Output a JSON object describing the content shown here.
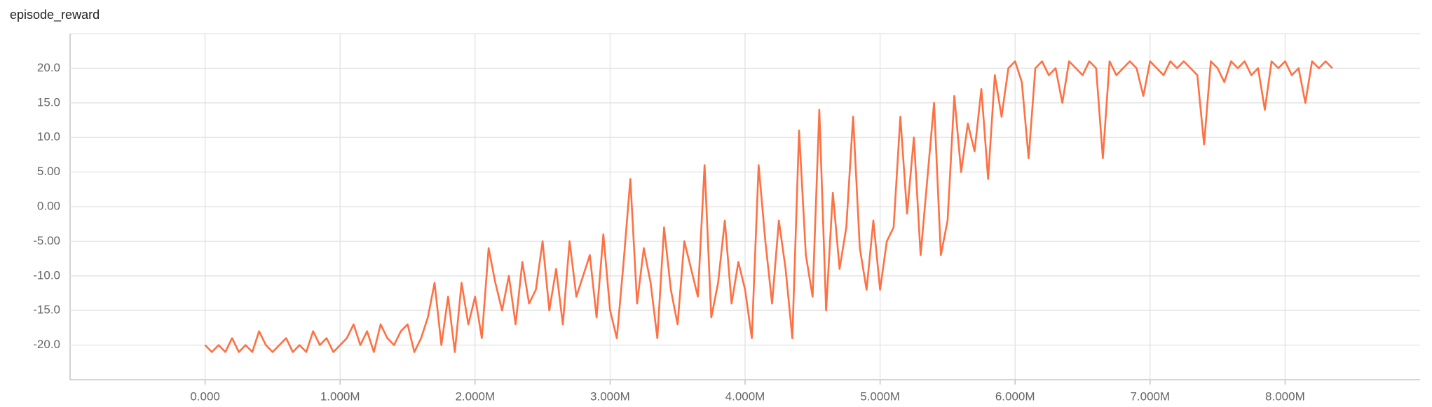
{
  "chart_data": {
    "type": "line",
    "title": "episode_reward",
    "x": [
      0,
      50000,
      100000,
      150000,
      200000,
      250000,
      300000,
      350000,
      400000,
      450000,
      500000,
      550000,
      600000,
      650000,
      700000,
      750000,
      800000,
      850000,
      900000,
      950000,
      1000000,
      1050000,
      1100000,
      1150000,
      1200000,
      1250000,
      1300000,
      1350000,
      1400000,
      1450000,
      1500000,
      1550000,
      1600000,
      1650000,
      1700000,
      1750000,
      1800000,
      1850000,
      1900000,
      1950000,
      2000000,
      2050000,
      2100000,
      2150000,
      2200000,
      2250000,
      2300000,
      2350000,
      2400000,
      2450000,
      2500000,
      2550000,
      2600000,
      2650000,
      2700000,
      2750000,
      2800000,
      2850000,
      2900000,
      2950000,
      3000000,
      3050000,
      3100000,
      3150000,
      3200000,
      3250000,
      3300000,
      3350000,
      3400000,
      3450000,
      3500000,
      3550000,
      3600000,
      3650000,
      3700000,
      3750000,
      3800000,
      3850000,
      3900000,
      3950000,
      4000000,
      4050000,
      4100000,
      4150000,
      4200000,
      4250000,
      4300000,
      4350000,
      4400000,
      4450000,
      4500000,
      4550000,
      4600000,
      4650000,
      4700000,
      4750000,
      4800000,
      4850000,
      4900000,
      4950000,
      5000000,
      5050000,
      5100000,
      5150000,
      5200000,
      5250000,
      5300000,
      5350000,
      5400000,
      5450000,
      5500000,
      5550000,
      5600000,
      5650000,
      5700000,
      5750000,
      5800000,
      5850000,
      5900000,
      5950000,
      6000000,
      6050000,
      6100000,
      6150000,
      6200000,
      6250000,
      6300000,
      6350000,
      6400000,
      6450000,
      6500000,
      6550000,
      6600000,
      6650000,
      6700000,
      6750000,
      6800000,
      6850000,
      6900000,
      6950000,
      7000000,
      7050000,
      7100000,
      7150000,
      7200000,
      7250000,
      7300000,
      7350000,
      7400000,
      7450000,
      7500000,
      7550000,
      7600000,
      7650000,
      7700000,
      7750000,
      7800000,
      7850000,
      7900000,
      7950000,
      8000000,
      8050000,
      8100000,
      8150000,
      8200000,
      8250000,
      8300000,
      8350000
    ],
    "series": [
      {
        "name": "episode_reward",
        "color": "#ff7043",
        "values": [
          -20,
          -21,
          -20,
          -21,
          -19,
          -21,
          -20,
          -21,
          -18,
          -20,
          -21,
          -20,
          -19,
          -21,
          -20,
          -21,
          -18,
          -20,
          -19,
          -21,
          -20,
          -19,
          -17,
          -20,
          -18,
          -21,
          -17,
          -19,
          -20,
          -18,
          -17,
          -21,
          -19,
          -16,
          -11,
          -20,
          -13,
          -21,
          -11,
          -17,
          -13,
          -19,
          -6,
          -11,
          -15,
          -10,
          -17,
          -8,
          -14,
          -12,
          -5,
          -15,
          -9,
          -17,
          -5,
          -13,
          -10,
          -7,
          -16,
          -4,
          -15,
          -19,
          -8,
          4,
          -14,
          -6,
          -11,
          -19,
          -3,
          -12,
          -17,
          -5,
          -9,
          -13,
          6,
          -16,
          -11,
          -2,
          -14,
          -8,
          -12,
          -19,
          6,
          -5,
          -14,
          -2,
          -9,
          -19,
          11,
          -7,
          -13,
          14,
          -15,
          2,
          -9,
          -3,
          13,
          -6,
          -12,
          -2,
          -12,
          -5,
          -3,
          13,
          -1,
          10,
          -7,
          4,
          15,
          -7,
          -2,
          16,
          5,
          12,
          8,
          17,
          4,
          19,
          13,
          20,
          21,
          18,
          7,
          20,
          21,
          19,
          20,
          15,
          21,
          20,
          19,
          21,
          20,
          7,
          21,
          19,
          20,
          21,
          20,
          16,
          21,
          20,
          19,
          21,
          20,
          21,
          20,
          19,
          9,
          21,
          20,
          18,
          21,
          20,
          21,
          19,
          20,
          14,
          21,
          20,
          21,
          19,
          20,
          15,
          21,
          20,
          21,
          20
        ]
      }
    ],
    "xlim": [
      -1000000,
      9000000
    ],
    "ylim": [
      -25,
      25
    ],
    "xticks": [
      {
        "value": 0,
        "label": "0.000"
      },
      {
        "value": 1000000,
        "label": "1.000M"
      },
      {
        "value": 2000000,
        "label": "2.000M"
      },
      {
        "value": 3000000,
        "label": "3.000M"
      },
      {
        "value": 4000000,
        "label": "4.000M"
      },
      {
        "value": 5000000,
        "label": "5.000M"
      },
      {
        "value": 6000000,
        "label": "6.000M"
      },
      {
        "value": 7000000,
        "label": "7.000M"
      },
      {
        "value": 8000000,
        "label": "8.000M"
      }
    ],
    "yticks": [
      {
        "value": 20,
        "label": "20.0"
      },
      {
        "value": 15,
        "label": "15.0"
      },
      {
        "value": 10,
        "label": "10.0"
      },
      {
        "value": 5,
        "label": "5.00"
      },
      {
        "value": 0,
        "label": "0.00"
      },
      {
        "value": -5,
        "label": "-5.00"
      },
      {
        "value": -10,
        "label": "-10.0"
      },
      {
        "value": -15,
        "label": "-15.0"
      },
      {
        "value": -20,
        "label": "-20.0"
      }
    ],
    "grid": true
  }
}
